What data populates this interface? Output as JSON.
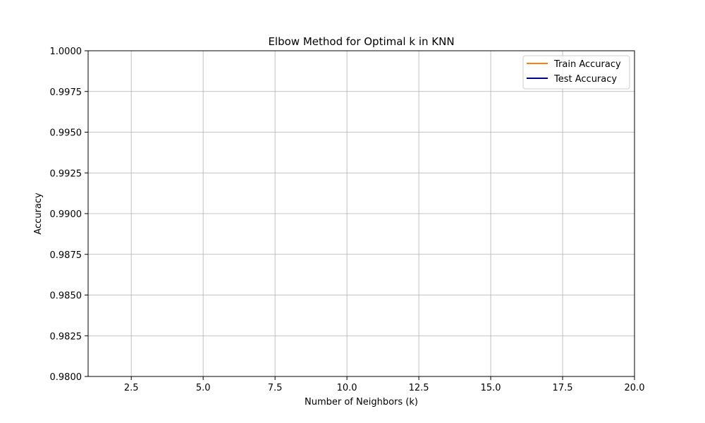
{
  "chart_data": {
    "type": "line",
    "title": "Elbow Method for Optimal k in KNN",
    "xlabel": "Number of Neighbors (k)",
    "ylabel": "Accuracy",
    "xlim": [
      1,
      20
    ],
    "ylim": [
      0.98,
      1.0
    ],
    "xticks": [
      2.5,
      5.0,
      7.5,
      10.0,
      12.5,
      15.0,
      17.5,
      20.0
    ],
    "xtick_labels": [
      "2.5",
      "5.0",
      "7.5",
      "10.0",
      "12.5",
      "15.0",
      "17.5",
      "20.0"
    ],
    "yticks": [
      0.98,
      0.9825,
      0.985,
      0.9875,
      0.99,
      0.9925,
      0.995,
      0.9975,
      1.0
    ],
    "ytick_labels": [
      "0.9800",
      "0.9825",
      "0.9850",
      "0.9875",
      "0.9900",
      "0.9925",
      "0.9950",
      "0.9975",
      "1.0000"
    ],
    "grid": true,
    "legend_position": "top-right",
    "series": [
      {
        "name": "Train Accuracy",
        "color": "#ff7f0e",
        "x": [],
        "y": []
      },
      {
        "name": "Test Accuracy",
        "color": "#00008b",
        "x": [],
        "y": []
      }
    ]
  }
}
